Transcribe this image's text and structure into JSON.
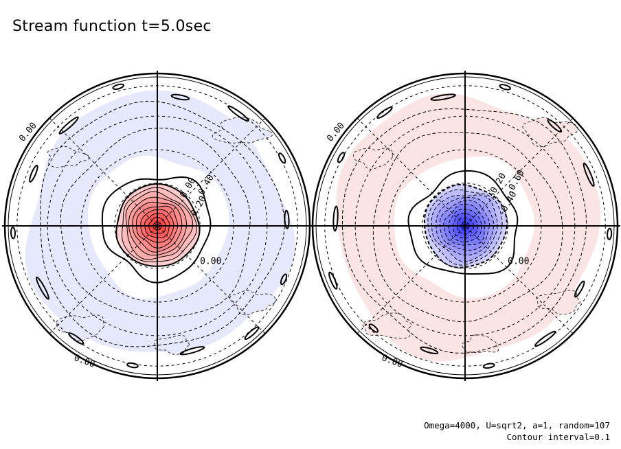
{
  "title": "Stream function t=5.0sec",
  "info": {
    "line1": "Omega=4000, U=sqrt2, a=1, random=107",
    "line2": "Contour interval=0.1"
  },
  "colors": {
    "positive": "#ff3a3a",
    "negative": "#3a3aff",
    "weak_positive": "#fbe4e4",
    "weak_negative": "#e6e8fb"
  },
  "chart_data": [
    {
      "type": "contour",
      "name": "left-hemisphere",
      "projection": "polar stereographic",
      "contour_interval": 0.1,
      "center_sign": "positive",
      "center_extreme": 1.0,
      "labels": [
        "0.00",
        "0.20",
        "0.40",
        "0.00",
        "0.00",
        "0.00"
      ]
    },
    {
      "type": "contour",
      "name": "right-hemisphere",
      "projection": "polar stereographic",
      "contour_interval": 0.1,
      "center_sign": "negative",
      "center_extreme": -1.0,
      "labels": [
        "-0.20",
        "-0.40",
        "-0.60",
        "0.00",
        "0.00",
        "0.00"
      ]
    }
  ]
}
